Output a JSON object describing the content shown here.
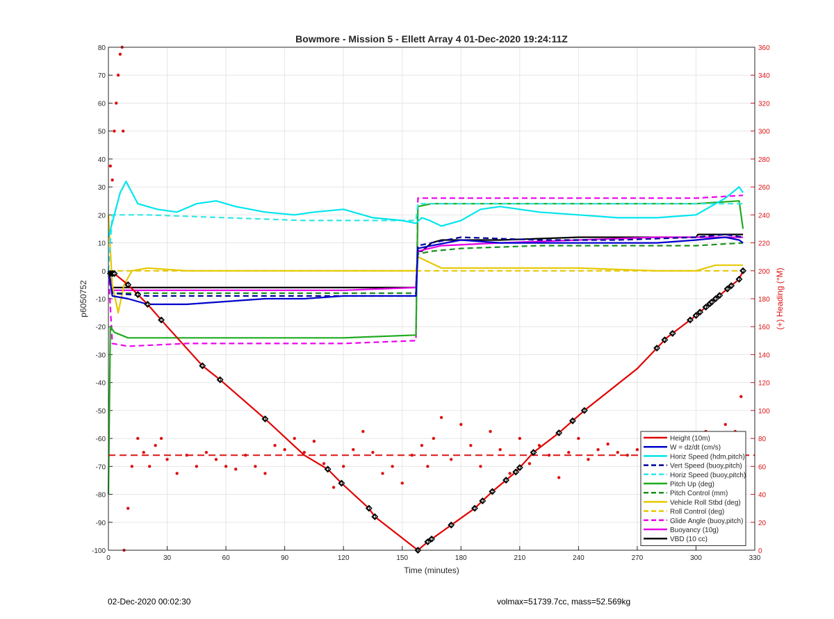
{
  "chart_data": {
    "type": "line",
    "title": "Bowmore - Mission 5 - Ellett Array 4 01-Dec-2020 19:24:11Z",
    "xlabel": "Time (minutes)",
    "ylabel": "p6050752",
    "y2label": "(+) Heading (°M)",
    "xlim": [
      0,
      330
    ],
    "ylim": [
      -100,
      80
    ],
    "y2lim": [
      0,
      360
    ],
    "xticks": [
      0,
      30,
      60,
      90,
      120,
      150,
      180,
      210,
      240,
      270,
      300,
      330
    ],
    "yticks": [
      -100,
      -90,
      -80,
      -70,
      -60,
      -50,
      -40,
      -30,
      -20,
      -10,
      0,
      10,
      20,
      30,
      40,
      50,
      60,
      70,
      80
    ],
    "y2ticks": [
      0,
      20,
      40,
      60,
      80,
      100,
      120,
      140,
      160,
      180,
      200,
      220,
      240,
      260,
      280,
      300,
      320,
      340,
      360
    ],
    "grid": true,
    "legend_position": "bottom-right",
    "series": [
      {
        "name": "Height (10m)",
        "color": "#e00000",
        "style": "solid",
        "x": [
          0,
          3,
          10,
          20,
          30,
          48,
          57,
          80,
          100,
          112,
          119,
          133,
          136,
          158,
          163,
          175,
          187,
          196,
          208,
          217,
          230,
          243,
          270,
          285,
          300,
          310,
          322,
          324
        ],
        "y": [
          -1,
          -1,
          -5,
          -12,
          -20,
          -34,
          -39,
          -53,
          -66,
          -71,
          -76,
          -85,
          -88,
          -100,
          -97,
          -91,
          -85,
          -79,
          -72,
          -65,
          -58,
          -50,
          -35,
          -24,
          -16,
          -10,
          -3,
          0
        ]
      },
      {
        "name": "W = dz/dt (cm/s)",
        "color": "#0000cc",
        "style": "solid",
        "x": [
          0,
          2,
          10,
          20,
          40,
          60,
          80,
          100,
          120,
          140,
          157,
          158,
          165,
          180,
          200,
          220,
          240,
          260,
          280,
          300,
          315,
          322,
          324
        ],
        "y": [
          0,
          -9,
          -10,
          -12,
          -12,
          -11,
          -10,
          -10,
          -9,
          -9,
          -9,
          8,
          9,
          11,
          10,
          10,
          10,
          10,
          10,
          11,
          12,
          11,
          10
        ]
      },
      {
        "name": "Horiz Speed (hdm,pitch)",
        "color": "#00e5ee",
        "style": "solid",
        "x": [
          0,
          3,
          6,
          9,
          15,
          25,
          35,
          45,
          55,
          65,
          80,
          95,
          105,
          120,
          135,
          150,
          157,
          160,
          164,
          170,
          180,
          190,
          200,
          210,
          220,
          240,
          260,
          280,
          300,
          315,
          322,
          324
        ],
        "y": [
          12,
          20,
          28,
          32,
          24,
          22,
          21,
          24,
          25,
          23,
          21,
          20,
          21,
          22,
          19,
          18,
          17,
          19,
          18,
          16,
          18,
          22,
          23,
          22,
          21,
          20,
          19,
          19,
          20,
          26,
          30,
          28
        ]
      },
      {
        "name": "Vert Speed (buoy,pitch)",
        "color": "#000099",
        "style": "dashed",
        "x": [
          0,
          2,
          20,
          60,
          100,
          140,
          157,
          158,
          165,
          180,
          220,
          260,
          300,
          315,
          324
        ],
        "y": [
          0,
          -8,
          -9,
          -9,
          -9,
          -9,
          -9,
          9,
          10,
          12,
          11,
          11,
          12,
          13,
          12
        ]
      },
      {
        "name": "Horiz Speed (buoy,pitch)",
        "color": "#33e6e6",
        "style": "dashed",
        "x": [
          0,
          2,
          20,
          60,
          100,
          140,
          157,
          158,
          165,
          180,
          220,
          260,
          300,
          315,
          324
        ],
        "y": [
          0,
          20,
          20,
          19,
          18,
          18,
          18,
          24,
          24,
          24,
          24,
          24,
          24,
          24,
          24
        ]
      },
      {
        "name": "Pitch Up (deg)",
        "color": "#1faa1f",
        "style": "solid",
        "x": [
          0,
          1,
          3,
          10,
          30,
          60,
          90,
          120,
          157,
          158,
          165,
          180,
          220,
          260,
          300,
          322,
          324
        ],
        "y": [
          -80,
          -20,
          -22,
          -24,
          -24,
          -24,
          -24,
          -24,
          -23,
          23,
          24,
          24,
          24,
          24,
          24,
          25,
          15
        ]
      },
      {
        "name": "Pitch Control (mm)",
        "color": "#1a8f1a",
        "style": "dashed",
        "x": [
          0,
          2,
          20,
          60,
          100,
          140,
          157,
          158,
          165,
          180,
          220,
          260,
          300,
          324
        ],
        "y": [
          0,
          -8,
          -8,
          -8,
          -8,
          -8,
          -8,
          6,
          7,
          8,
          9,
          9,
          9,
          10
        ]
      },
      {
        "name": "Vehicle Roll Stbd (deg)",
        "color": "#e6c800",
        "style": "solid",
        "x": [
          0,
          2,
          5,
          8,
          12,
          20,
          40,
          80,
          120,
          157,
          158,
          170,
          200,
          240,
          280,
          300,
          310,
          324
        ],
        "y": [
          20,
          -5,
          -15,
          -5,
          0,
          1,
          0,
          0,
          0,
          0,
          5,
          1,
          1,
          1,
          0,
          0,
          2,
          2
        ]
      },
      {
        "name": "Roll Control (deg)",
        "color": "#e6c800",
        "style": "dashed",
        "x": [
          0,
          5,
          20,
          60,
          100,
          140,
          157,
          158,
          170,
          200,
          240,
          280,
          310,
          324
        ],
        "y": [
          0,
          0,
          0,
          0,
          0,
          0,
          0,
          0,
          0,
          0,
          0,
          0,
          0,
          0
        ]
      },
      {
        "name": "Glide Angle (buoy,pitch)",
        "color": "#ee00ee",
        "style": "dashed",
        "x": [
          0,
          2,
          10,
          40,
          80,
          120,
          157,
          158,
          165,
          200,
          240,
          280,
          300,
          324
        ],
        "y": [
          0,
          -26,
          -27,
          -26,
          -26,
          -26,
          -25,
          26,
          26,
          26,
          26,
          26,
          26,
          27
        ]
      },
      {
        "name": "Buoyancy (10g)",
        "color": "#e600e6",
        "style": "solid",
        "x": [
          0,
          2,
          30,
          80,
          120,
          157,
          158,
          170,
          200,
          240,
          280,
          300,
          324
        ],
        "y": [
          0,
          -7,
          -7,
          -7,
          -7,
          -6,
          7,
          9,
          10,
          11,
          12,
          12,
          12
        ]
      },
      {
        "name": "VBD (10 cc)",
        "color": "#000000",
        "style": "solid",
        "x": [
          0,
          2,
          30,
          80,
          120,
          157,
          158,
          160,
          165,
          170,
          200,
          240,
          280,
          300,
          301,
          324
        ],
        "y": [
          0,
          -6,
          -6,
          -6,
          -6,
          -6,
          7,
          7,
          10,
          11,
          11,
          12,
          12,
          12,
          13,
          13
        ]
      }
    ],
    "heading_series": {
      "name": "(+) Heading (°M)",
      "color": "#dd1111",
      "axis": "right",
      "mean": 68,
      "x": [
        1,
        2,
        3,
        4,
        5,
        6,
        7,
        7.5,
        8,
        10,
        12,
        15,
        18,
        21,
        24,
        27,
        30,
        35,
        40,
        45,
        50,
        55,
        60,
        65,
        70,
        75,
        80,
        85,
        90,
        95,
        100,
        105,
        110,
        115,
        120,
        125,
        130,
        135,
        140,
        145,
        150,
        155,
        160,
        163,
        166,
        170,
        175,
        180,
        185,
        190,
        195,
        200,
        205,
        210,
        215,
        220,
        225,
        230,
        235,
        240,
        245,
        250,
        255,
        260,
        265,
        270,
        275,
        280,
        285,
        290,
        295,
        300,
        305,
        310,
        315,
        320,
        323
      ],
      "y": [
        275,
        265,
        300,
        320,
        340,
        355,
        360,
        300,
        0,
        30,
        60,
        80,
        70,
        60,
        75,
        80,
        65,
        55,
        68,
        60,
        70,
        65,
        60,
        58,
        68,
        60,
        55,
        75,
        72,
        80,
        70,
        78,
        62,
        45,
        60,
        72,
        85,
        70,
        55,
        60,
        48,
        68,
        75,
        60,
        80,
        95,
        65,
        90,
        75,
        60,
        85,
        72,
        55,
        80,
        62,
        75,
        68,
        52,
        70,
        80,
        65,
        72,
        76,
        70,
        68,
        72,
        70,
        62,
        76,
        70,
        80,
        65,
        85,
        75,
        90,
        85,
        110
      ]
    },
    "markers_on": "Height (10m)",
    "marker_x": [
      1,
      2,
      3,
      10,
      15,
      20,
      27,
      48,
      57,
      80,
      112,
      119,
      133,
      136,
      158,
      163,
      165,
      175,
      187,
      191,
      196,
      203,
      208,
      210,
      217,
      230,
      237,
      243,
      280,
      284,
      288,
      297,
      300,
      302,
      305,
      307,
      308,
      310,
      312,
      316,
      318,
      322,
      324
    ],
    "footer_left": "02-Dec-2020 00:02:30",
    "footer_right": "volmax=51739.7cc, mass=52.569kg"
  }
}
